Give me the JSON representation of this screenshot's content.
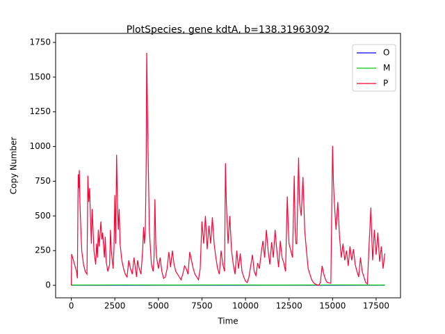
{
  "chart_data": {
    "type": "line",
    "title": "PlotSpecies, gene kdtA, b=138.31963092",
    "xlabel": "Time",
    "ylabel": "Copy Number",
    "xlim": [
      -900,
      18900
    ],
    "xticks": [
      0,
      2500,
      5000,
      7500,
      10000,
      12500,
      15000,
      17500
    ],
    "ylim": [
      -90,
      1815
    ],
    "yticks": [
      0,
      250,
      500,
      750,
      1000,
      1250,
      1500,
      1750
    ],
    "legend": "upper right",
    "series": [
      {
        "name": "O",
        "color": "#0000ff",
        "x": [
          0,
          18000
        ],
        "values": [
          1,
          1
        ]
      },
      {
        "name": "M",
        "color": "#00cc00",
        "x": [
          0,
          3000,
          6000,
          9000,
          12000,
          15000,
          18000
        ],
        "values": [
          2,
          3,
          2,
          3,
          2,
          3,
          2
        ]
      },
      {
        "name": "P",
        "color": "#ff0033",
        "x": [
          0,
          20,
          300,
          350,
          380,
          400,
          430,
          460,
          500,
          550,
          600,
          700,
          800,
          900,
          950,
          1000,
          1050,
          1100,
          1150,
          1200,
          1300,
          1400,
          1450,
          1500,
          1550,
          1600,
          1700,
          1750,
          1800,
          1900,
          1950,
          2000,
          2100,
          2200,
          2250,
          2300,
          2400,
          2450,
          2500,
          2550,
          2600,
          2650,
          2700,
          2750,
          2800,
          2900,
          3000,
          3100,
          3200,
          3300,
          3400,
          3500,
          3600,
          3700,
          3750,
          3800,
          3900,
          4000,
          4100,
          4150,
          4200,
          4250,
          4300,
          4330,
          4380,
          4430,
          4480,
          4550,
          4600,
          4700,
          4750,
          4800,
          4850,
          4900,
          5000,
          5100,
          5200,
          5300,
          5400,
          5500,
          5600,
          5700,
          5800,
          5900,
          6000,
          6100,
          6200,
          6300,
          6400,
          6500,
          6600,
          6700,
          6800,
          6900,
          7000,
          7100,
          7200,
          7300,
          7400,
          7500,
          7600,
          7700,
          7800,
          7900,
          8000,
          8100,
          8200,
          8300,
          8400,
          8500,
          8600,
          8700,
          8800,
          8850,
          8900,
          9000,
          9100,
          9200,
          9300,
          9400,
          9500,
          9600,
          9700,
          9800,
          9900,
          10000,
          10100,
          10200,
          10300,
          10400,
          10500,
          10600,
          10700,
          10800,
          10900,
          11000,
          11100,
          11200,
          11300,
          11400,
          11500,
          11600,
          11700,
          11800,
          11900,
          12000,
          12100,
          12200,
          12300,
          12400,
          12450,
          12500,
          12600,
          12700,
          12800,
          12850,
          12900,
          12950,
          13000,
          13050,
          13100,
          13200,
          13300,
          13400,
          13500,
          13600,
          13700,
          13800,
          13900,
          14000,
          14100,
          14200,
          14300,
          14400,
          14500,
          14600,
          14700,
          14900,
          14950,
          15000,
          15050,
          15100,
          15200,
          15300,
          15400,
          15500,
          15600,
          15700,
          15800,
          15900,
          16000,
          16100,
          16200,
          16300,
          16400,
          16500,
          16600,
          16700,
          16800,
          16900,
          17000,
          17100,
          17200,
          17250,
          17300,
          17400,
          17500,
          17600,
          17700,
          17800,
          17900,
          18000
        ],
        "values": [
          0,
          225,
          100,
          50,
          600,
          800,
          700,
          830,
          580,
          400,
          250,
          150,
          100,
          80,
          790,
          600,
          700,
          500,
          300,
          550,
          250,
          150,
          300,
          200,
          400,
          280,
          460,
          330,
          380,
          200,
          350,
          170,
          100,
          150,
          400,
          250,
          120,
          260,
          650,
          300,
          940,
          600,
          400,
          550,
          300,
          180,
          120,
          80,
          60,
          180,
          120,
          80,
          200,
          100,
          60,
          180,
          120,
          80,
          260,
          420,
          300,
          400,
          880,
          1675,
          1200,
          800,
          400,
          250,
          150,
          100,
          200,
          620,
          300,
          200,
          120,
          200,
          100,
          50,
          60,
          120,
          240,
          130,
          250,
          150,
          100,
          80,
          60,
          40,
          80,
          140,
          120,
          80,
          240,
          180,
          120,
          80,
          60,
          40,
          120,
          460,
          300,
          500,
          260,
          430,
          300,
          490,
          300,
          200,
          120,
          80,
          250,
          150,
          100,
          880,
          600,
          300,
          500,
          250,
          150,
          80,
          250,
          120,
          230,
          100,
          60,
          30,
          20,
          60,
          140,
          220,
          100,
          70,
          160,
          120,
          230,
          320,
          200,
          400,
          250,
          150,
          310,
          200,
          400,
          250,
          130,
          320,
          200,
          160,
          100,
          640,
          450,
          300,
          250,
          200,
          790,
          400,
          300,
          300,
          640,
          920,
          600,
          500,
          780,
          400,
          250,
          120,
          80,
          40,
          20,
          10,
          5,
          0,
          20,
          140,
          80,
          40,
          20,
          15,
          500,
          1005,
          740,
          600,
          400,
          600,
          350,
          200,
          300,
          180,
          250,
          140,
          280,
          180,
          260,
          150,
          100,
          60,
          200,
          100,
          60,
          20,
          10,
          300,
          560,
          350,
          180,
          400,
          220,
          380,
          170,
          280,
          120,
          230
        ]
      }
    ]
  }
}
